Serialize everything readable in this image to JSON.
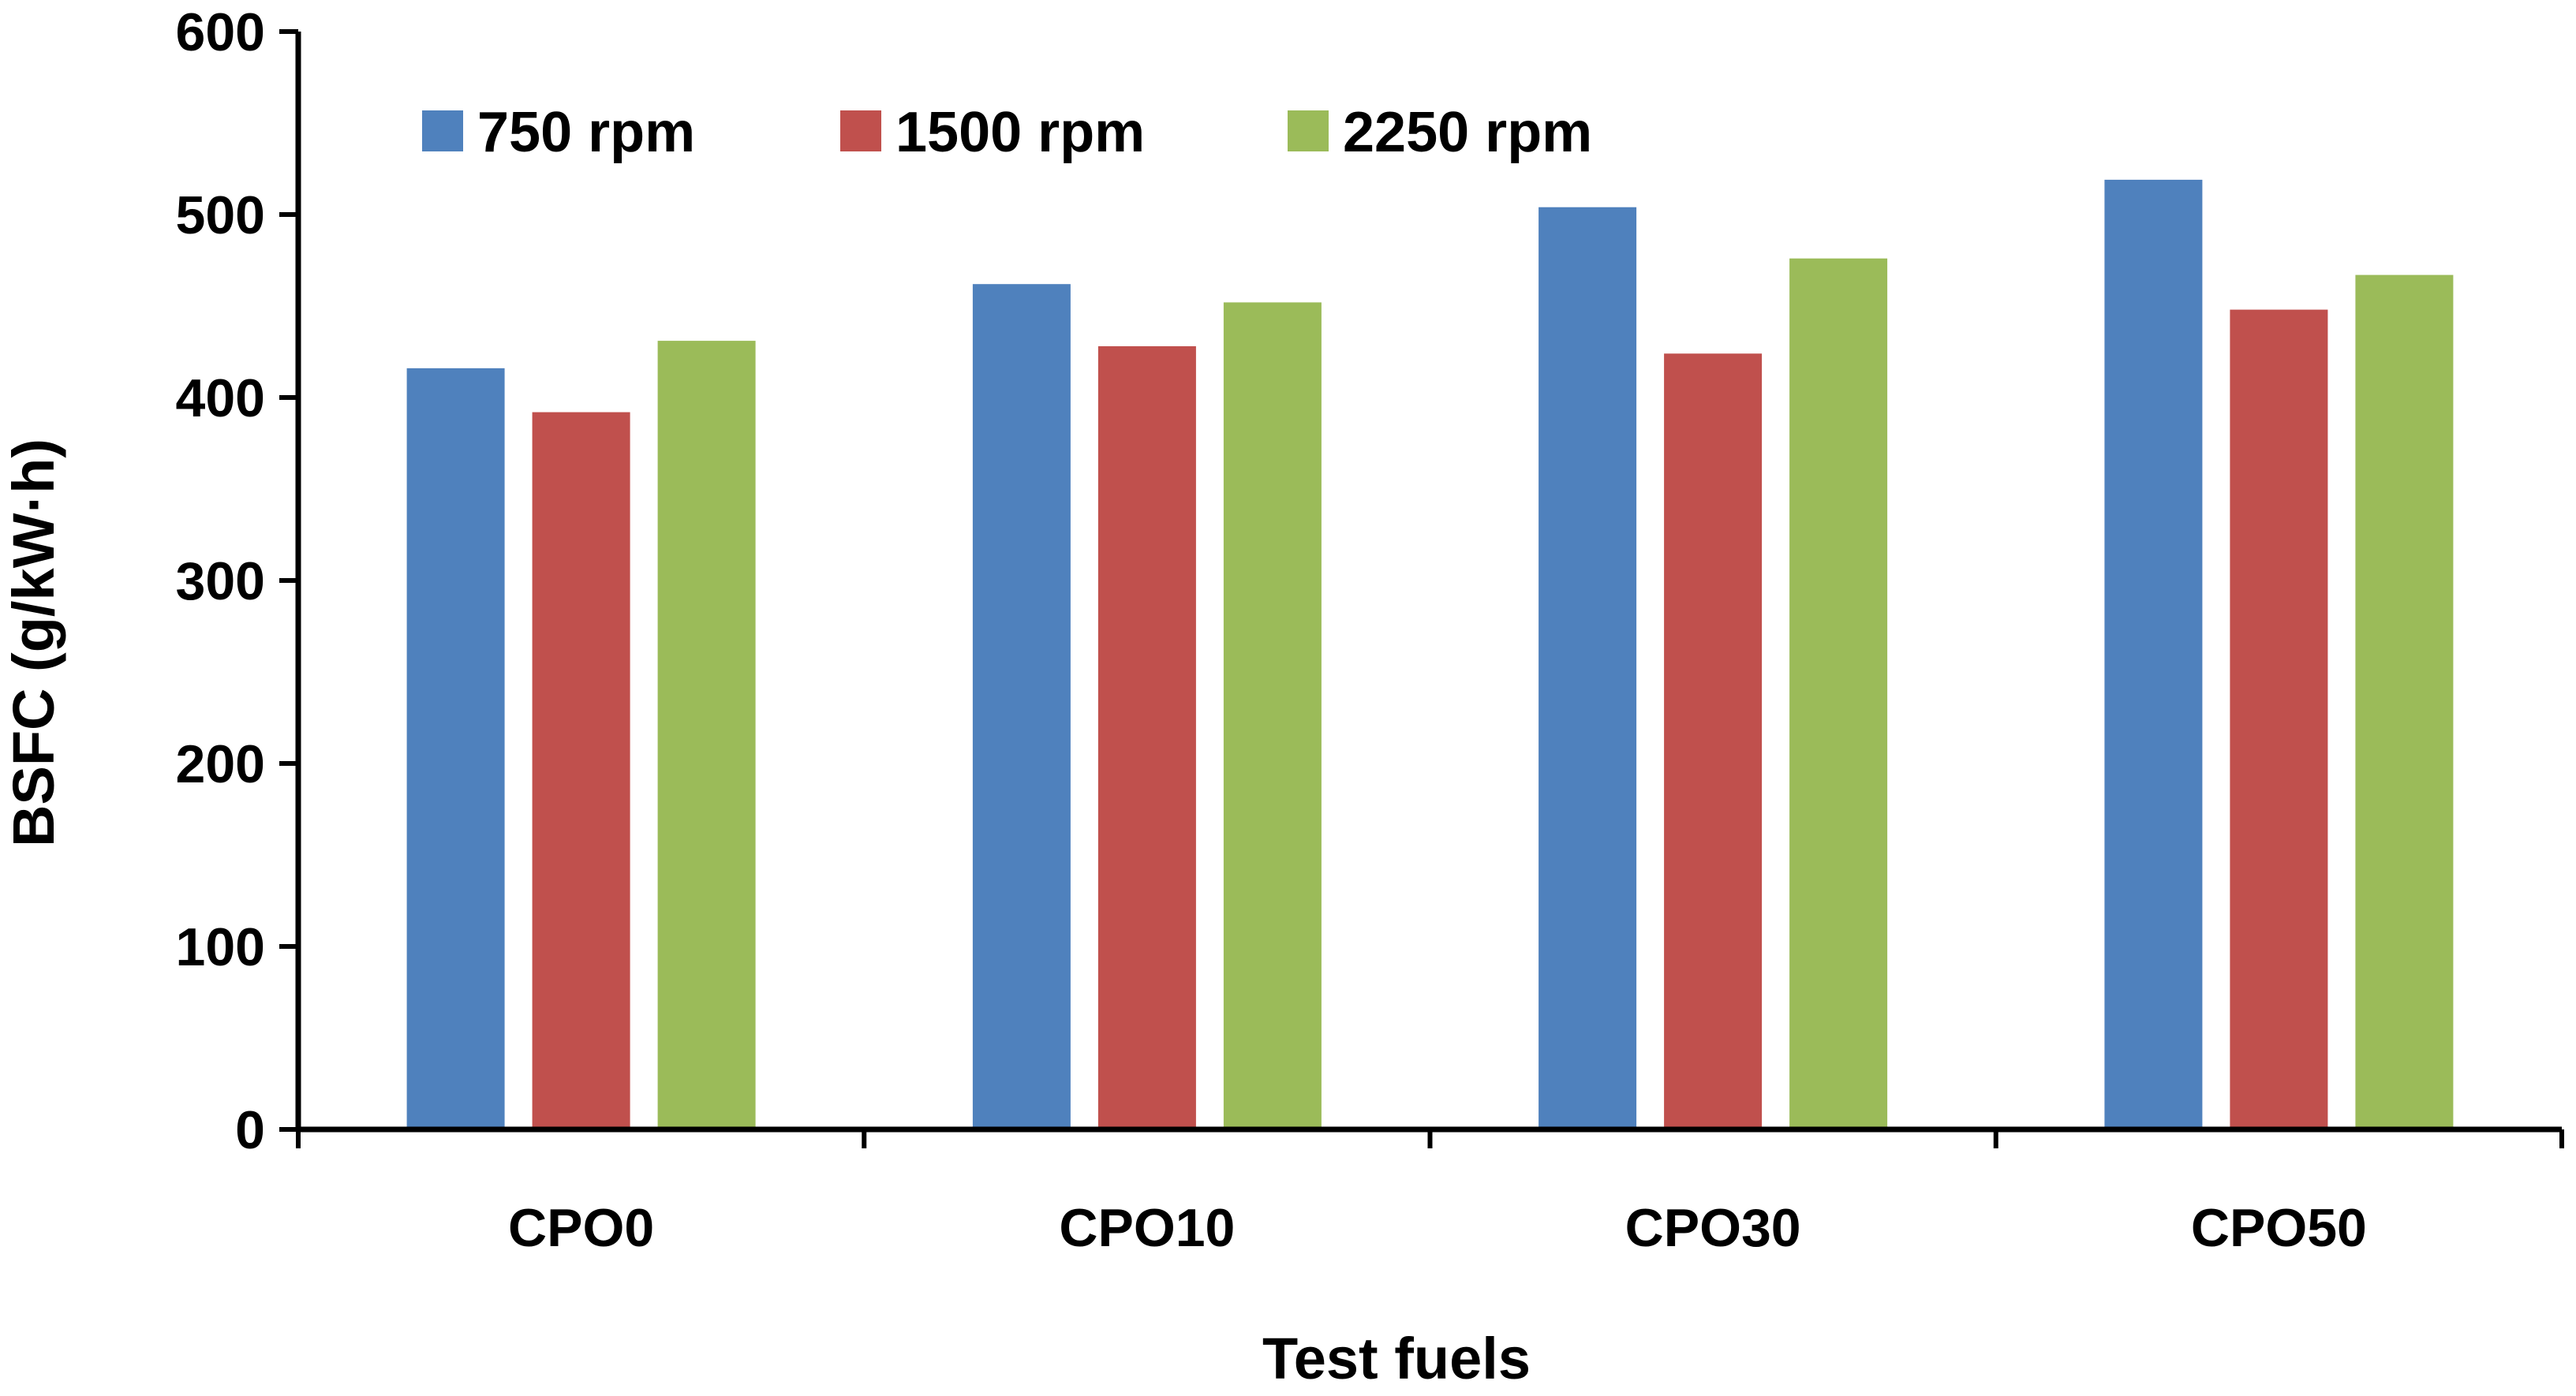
{
  "chart_data": {
    "type": "bar",
    "title": "",
    "xlabel": "Test fuels",
    "ylabel": "BSFC (g/kW·h)",
    "categories": [
      "CPO0",
      "CPO10",
      "CPO30",
      "CPO50"
    ],
    "series": [
      {
        "name": "750 rpm",
        "color": "#4F81BD",
        "values": [
          416,
          462,
          504,
          519
        ]
      },
      {
        "name": "1500 rpm",
        "color": "#C0504D",
        "values": [
          392,
          428,
          424,
          448
        ]
      },
      {
        "name": "2250 rpm",
        "color": "#9BBB59",
        "values": [
          431,
          452,
          476,
          467
        ]
      }
    ],
    "ylim": [
      0,
      600
    ],
    "yticks": [
      0,
      100,
      200,
      300,
      400,
      500,
      600
    ],
    "grid": false,
    "legend_position": "top-left-inside"
  }
}
